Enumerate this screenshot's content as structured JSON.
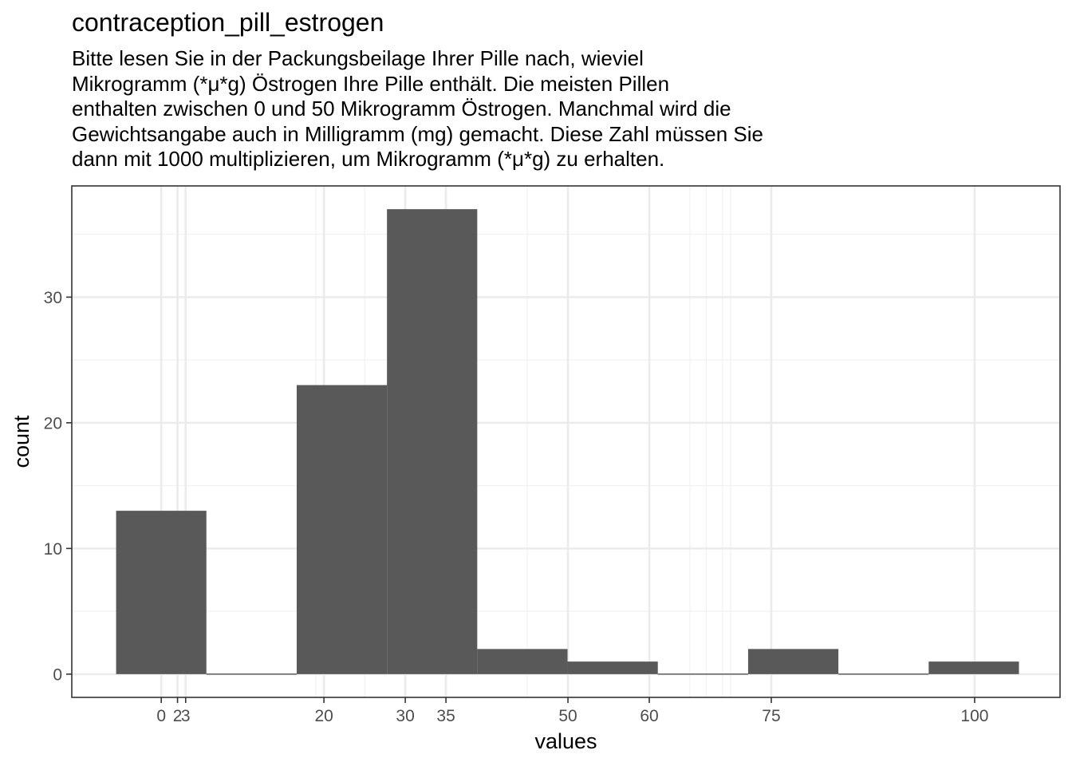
{
  "chart_data": {
    "type": "bar",
    "title": "contraception_pill_estrogen",
    "subtitle_lines": [
      "Bitte lesen Sie in der Packungsbeilage Ihrer Pille nach, wieviel",
      "Mikrogramm (*μ*g) Östrogen Ihre Pille enthält. Die meisten Pillen",
      "enthalten zwischen 0 und 50 Mikrogramm Östrogen. Manchmal wird die",
      "Gewichtsangabe auch in Milligramm (mg) gemacht. Diese Zahl müssen Sie",
      "dann mit 1000 multiplizieren, um Mikrogramm (*μ*g) zu erhalten."
    ],
    "xlabel": "values",
    "ylabel": "count",
    "bin_width": 11.1,
    "bins": [
      {
        "center": 0,
        "count": 13
      },
      {
        "center": 11.1,
        "count": 0
      },
      {
        "center": 22.2,
        "count": 23
      },
      {
        "center": 33.3,
        "count": 37
      },
      {
        "center": 44.4,
        "count": 2
      },
      {
        "center": 55.5,
        "count": 1
      },
      {
        "center": 66.6,
        "count": 0
      },
      {
        "center": 77.7,
        "count": 2
      },
      {
        "center": 88.8,
        "count": 0
      },
      {
        "center": 99.9,
        "count": 1
      }
    ],
    "x_ticks": [
      {
        "value": 0,
        "label": "0"
      },
      {
        "value": 2,
        "label": "2"
      },
      {
        "value": 3,
        "label": "3"
      },
      {
        "value": 20,
        "label": "20"
      },
      {
        "value": 30,
        "label": "30"
      },
      {
        "value": 35,
        "label": "35"
      },
      {
        "value": 50,
        "label": "50"
      },
      {
        "value": 60,
        "label": "60"
      },
      {
        "value": 75,
        "label": "75"
      },
      {
        "value": 100,
        "label": "100"
      }
    ],
    "x_minor_gridlines": [
      19,
      25,
      45,
      65,
      67,
      69,
      70
    ],
    "y_ticks": [
      0,
      10,
      20,
      30
    ],
    "y_minor": [
      5,
      15,
      25,
      35
    ],
    "xlim": [
      -11,
      110.5
    ],
    "ylim": [
      -1.85,
      38.85
    ],
    "grid": true,
    "bar_color": "#595959",
    "grid_major_color": "#ebebeb",
    "grid_minor_color": "#f2f2f2",
    "frame_color": "#333333"
  }
}
